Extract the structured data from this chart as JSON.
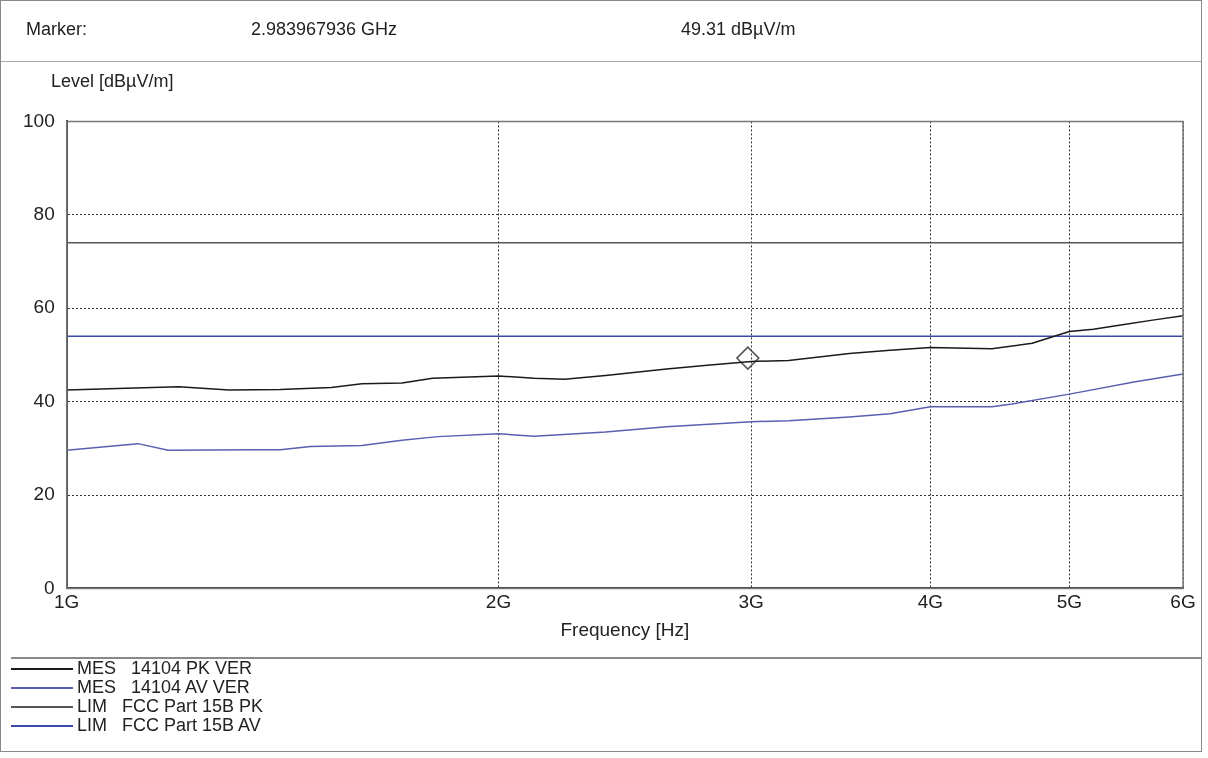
{
  "chart_data": {
    "type": "line",
    "xlabel": "Frequency [Hz]",
    "ylabel": "Level [dBµV/m]",
    "annotations": [
      "Marker:",
      "2.983967936 GHz",
      "49.31 dBµV/m"
    ],
    "log": "x",
    "grid": true,
    "legend": "bottom",
    "marker": "none",
    "xlim": [
      1,
      6
    ],
    "ylim": [
      0,
      100
    ],
    "xticks": [
      {
        "value": 1,
        "label": "1G"
      },
      {
        "value": 2,
        "label": "2G"
      },
      {
        "value": 3,
        "label": "3G"
      },
      {
        "value": 4,
        "label": "4G"
      },
      {
        "value": 5,
        "label": "5G"
      },
      {
        "value": 6,
        "label": "6G"
      }
    ],
    "yticks": [
      0,
      20,
      40,
      60,
      80,
      100
    ],
    "series": [
      {
        "name": "MES   14104 PK VER",
        "color": "#1a1a1a",
        "x": [
          1,
          1.085,
          1.197,
          1.298,
          1.409,
          1.529,
          1.606,
          1.713,
          1.799,
          2,
          2.118,
          2.224,
          2.375,
          2.619,
          2.796,
          3,
          3.186,
          3.512,
          3.75,
          4,
          4.414,
          4.71,
          5,
          5.196,
          5.458,
          5.73,
          6
        ],
        "values": [
          42.5,
          42.8,
          43.2,
          42.5,
          42.6,
          43,
          43.8,
          44,
          45,
          45.5,
          45,
          44.8,
          45.6,
          47,
          47.8,
          48.6,
          48.8,
          50.3,
          51,
          51.6,
          51.3,
          52.5,
          55,
          55.5,
          56.5,
          57.5,
          58.4
        ]
      },
      {
        "name": "MES   14104 AV VER",
        "color": "#5a5fb0",
        "x": [
          1,
          1.121,
          1.177,
          1.409,
          1.479,
          1.606,
          1.713,
          1.814,
          2,
          2.118,
          2.375,
          2.619,
          3,
          3.186,
          3.512,
          3.75,
          4,
          4.414,
          4.56,
          5,
          5.546,
          6
        ],
        "values": [
          29.6,
          31,
          29.6,
          29.7,
          30.4,
          30.6,
          31.7,
          32.5,
          33.1,
          32.6,
          33.5,
          34.6,
          35.7,
          35.9,
          36.7,
          37.4,
          38.9,
          38.9,
          39.5,
          41.6,
          44.2,
          45.9
        ]
      },
      {
        "name": "LIM   FCC Part 15B PK",
        "color": "#555555",
        "x": [
          1,
          6
        ],
        "values": [
          74,
          74
        ]
      },
      {
        "name": "LIM   FCC Part 15B AV",
        "color": "#3a4aa8",
        "x": [
          1,
          6
        ],
        "values": [
          54,
          54
        ]
      },
      {
        "type": "scatter",
        "marker": "diamond",
        "color": "#555555",
        "x": [
          2.983967936
        ],
        "values": [
          49.31
        ]
      }
    ]
  }
}
